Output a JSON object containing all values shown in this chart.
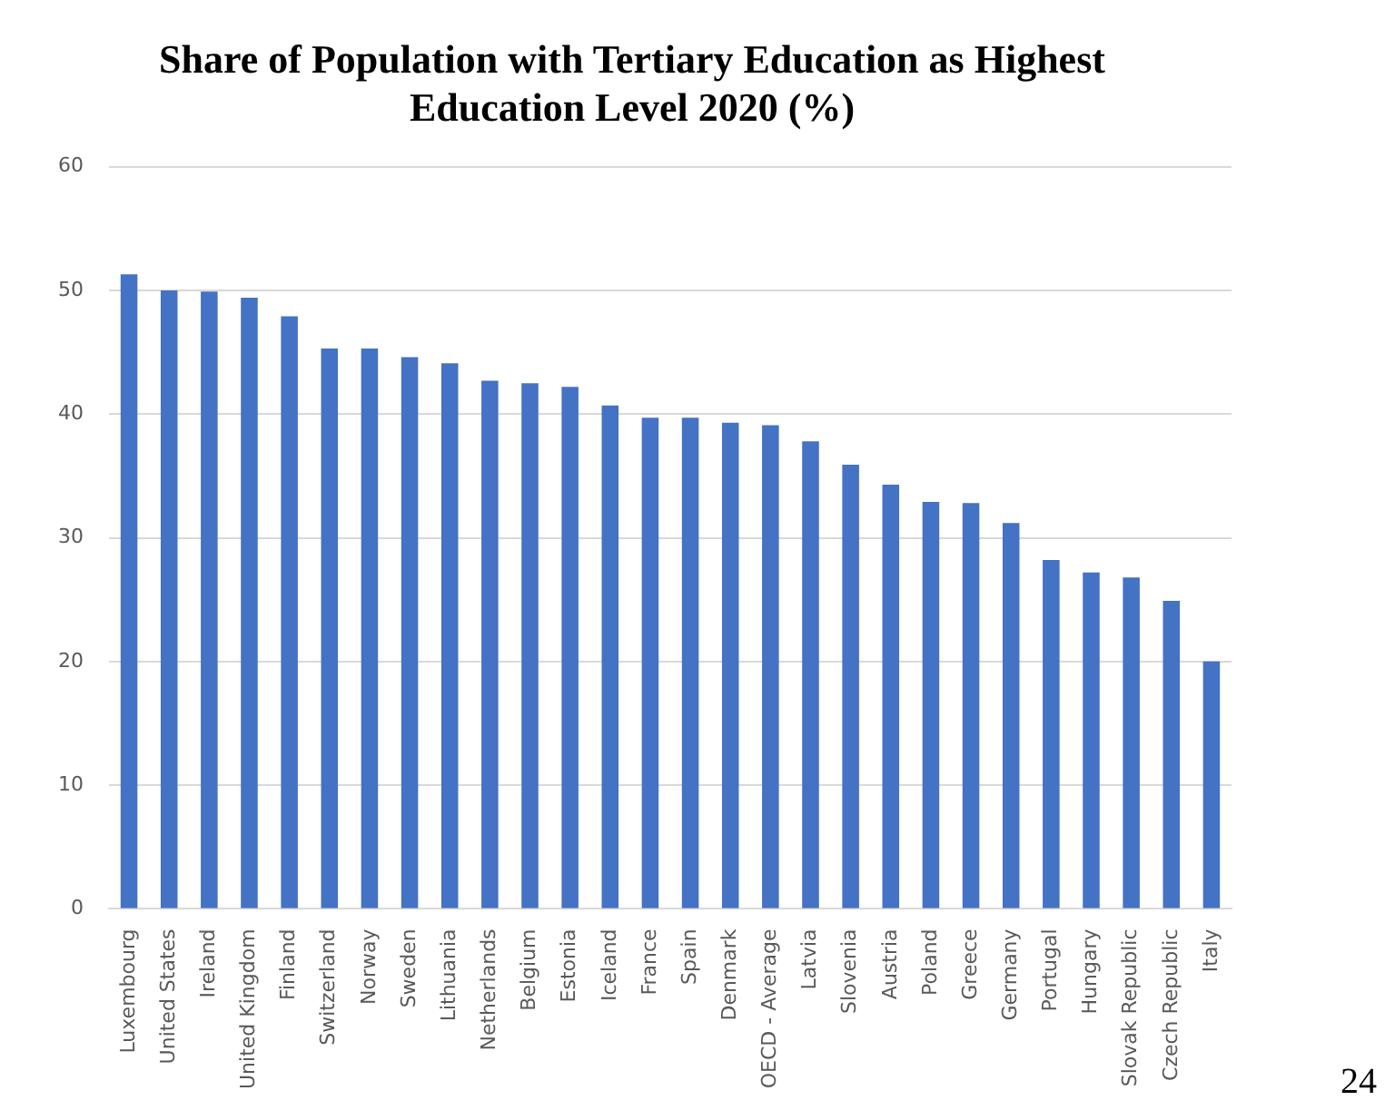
{
  "chart_data": {
    "type": "bar",
    "title": [
      "Share of Population with Tertiary Education as Highest",
      "Education Level 2020 (%)"
    ],
    "categories": [
      "Luxembourg",
      "United States",
      "Ireland",
      "United Kingdom",
      "Finland",
      "Switzerland",
      "Norway",
      "Sweden",
      "Lithuania",
      "Netherlands",
      "Belgium",
      "Estonia",
      "Iceland",
      "France",
      "Spain",
      "Denmark",
      "OECD - Average",
      "Latvia",
      "Slovenia",
      "Austria",
      "Poland",
      "Greece",
      "Germany",
      "Portugal",
      "Hungary",
      "Slovak Republic",
      "Czech Republic",
      "Italy"
    ],
    "values": [
      51.3,
      50.0,
      49.9,
      49.4,
      47.9,
      45.3,
      45.3,
      44.6,
      44.1,
      42.7,
      42.5,
      42.2,
      40.7,
      39.7,
      39.7,
      39.3,
      39.1,
      37.8,
      35.9,
      34.3,
      32.9,
      32.8,
      31.2,
      28.2,
      27.2,
      26.8,
      24.9,
      20.0
    ],
    "color": "#4472c4",
    "ylim": [
      0,
      60
    ],
    "yticks": [
      0,
      10,
      20,
      30,
      40,
      50,
      60
    ],
    "grid": "y",
    "legend": false,
    "annotations": [
      "24"
    ]
  }
}
